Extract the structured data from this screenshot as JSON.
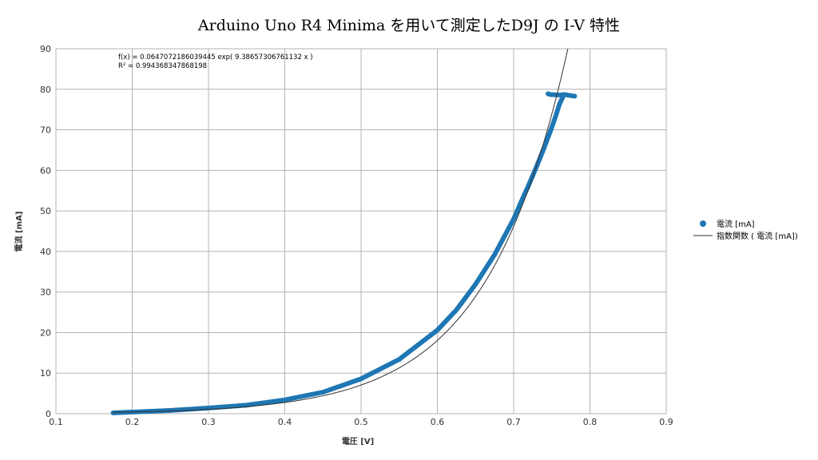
{
  "chart_data": {
    "type": "scatter",
    "title": "Arduino Uno R4 Minima を用いて測定したD9J の I-V 特性",
    "xlabel": "電圧 [V]",
    "ylabel": "電流 [mA]",
    "xlim": [
      0.1,
      0.9
    ],
    "ylim": [
      0,
      90
    ],
    "xticks": [
      "0.1",
      "0.2",
      "0.3",
      "0.4",
      "0.5",
      "0.6",
      "0.7",
      "0.8",
      "0.9"
    ],
    "yticks": [
      "0",
      "10",
      "20",
      "30",
      "40",
      "50",
      "60",
      "70",
      "80",
      "90"
    ],
    "grid": true,
    "legend_position": "right",
    "series": [
      {
        "name": "電流 [mA]",
        "kind": "points",
        "color": "#1f77b4",
        "x": [
          0.175,
          0.2,
          0.25,
          0.3,
          0.35,
          0.4,
          0.45,
          0.5,
          0.55,
          0.6,
          0.625,
          0.65,
          0.675,
          0.7,
          0.71,
          0.72,
          0.73,
          0.74,
          0.75,
          0.755,
          0.76,
          0.765
        ],
        "y": [
          0.2,
          0.4,
          0.8,
          1.4,
          2.1,
          3.4,
          5.3,
          8.6,
          13.4,
          20.6,
          25.6,
          31.9,
          39.2,
          48.0,
          52.3,
          56.5,
          60.9,
          65.6,
          70.6,
          73.3,
          76.3,
          78.3
        ]
      },
      {
        "name": "",
        "kind": "points",
        "color": "#1f77b4",
        "x": [
          0.745,
          0.748,
          0.758,
          0.762,
          0.766,
          0.78
        ],
        "y": [
          78.9,
          78.7,
          78.6,
          78.6,
          78.7,
          78.3
        ]
      },
      {
        "name": "指数関数 ( 電流 [mA])",
        "kind": "line",
        "color": "#333333",
        "function": "exp",
        "a": 0.0647072186039445,
        "b": 9.38657306761132
      }
    ],
    "annotations": [
      "f(x) = 0.0647072186039445 exp( 9.38657306761132 x )",
      "R² = 0.994368347868198"
    ]
  }
}
